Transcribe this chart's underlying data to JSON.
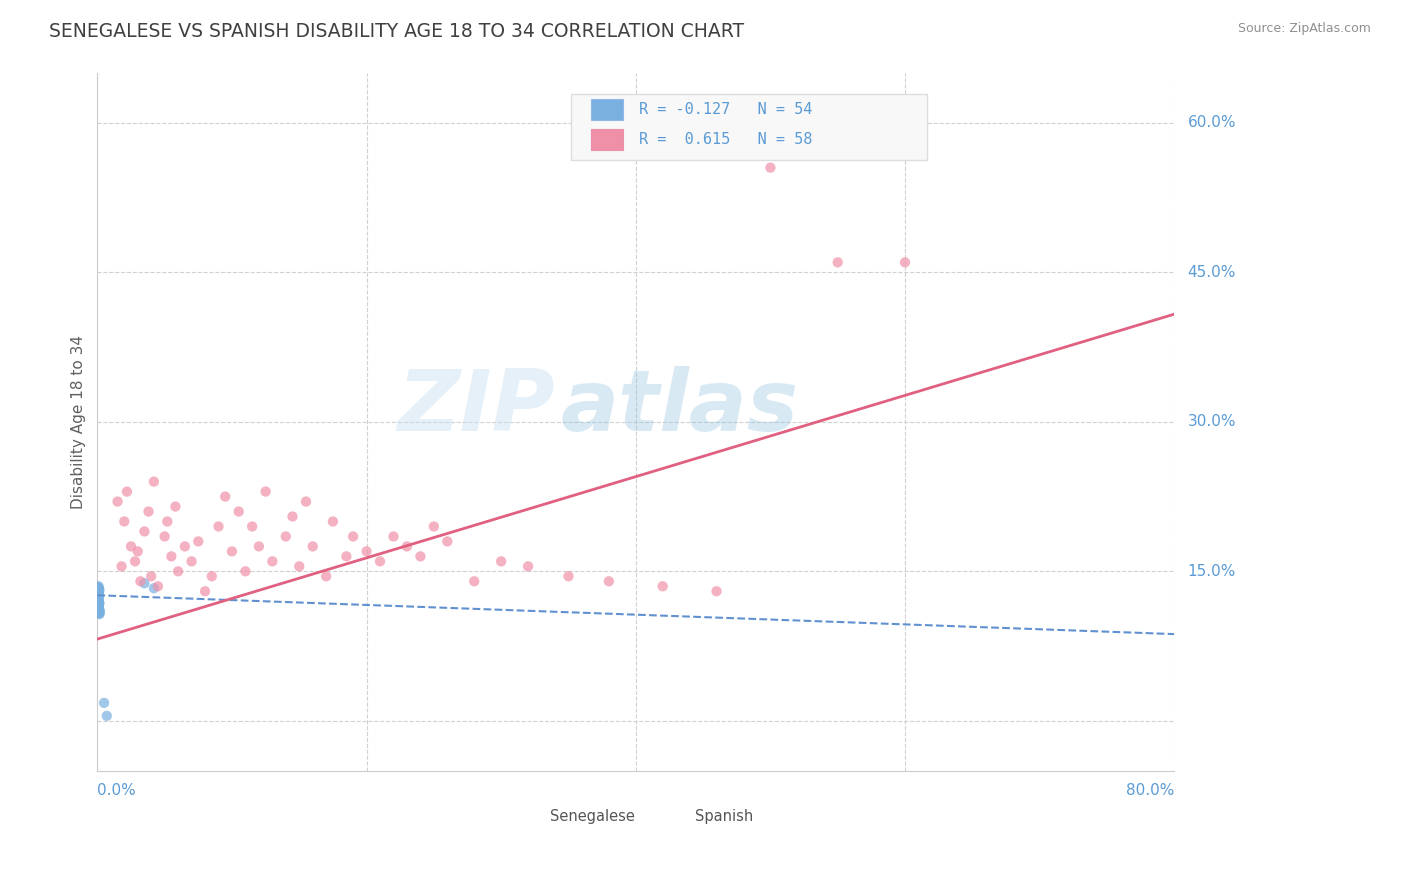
{
  "title": "SENEGALESE VS SPANISH DISABILITY AGE 18 TO 34 CORRELATION CHART",
  "source": "Source: ZipAtlas.com",
  "ylabel": "Disability Age 18 to 34",
  "watermark_zip": "ZIP",
  "watermark_atlas": "atlas",
  "xlim": [
    0.0,
    0.8
  ],
  "ylim": [
    -0.05,
    0.65
  ],
  "bg_color": "#ffffff",
  "grid_color": "#d0d0d0",
  "blue_color": "#7ab0e0",
  "pink_color": "#f090a8",
  "trendline_blue_color": "#6090d0",
  "trendline_pink_color": "#e06080",
  "axis_label_color": "#5b9bd5",
  "title_color": "#404040",
  "source_color": "#909090",
  "legend_bg": "#f8f8f8",
  "legend_border": "#dddddd",
  "scatter_size": 55,
  "senegalese_x": [
    0.0005,
    0.001,
    0.0008,
    0.0012,
    0.0006,
    0.0015,
    0.0009,
    0.0007,
    0.0011,
    0.0013,
    0.0004,
    0.0018,
    0.0006,
    0.001,
    0.0008,
    0.0014,
    0.0007,
    0.0009,
    0.0012,
    0.0005,
    0.0016,
    0.0008,
    0.0011,
    0.0006,
    0.0013,
    0.0009,
    0.0007,
    0.0015,
    0.001,
    0.0004,
    0.0012,
    0.0008,
    0.0006,
    0.0014,
    0.0009,
    0.0011,
    0.0007,
    0.0013,
    0.0005,
    0.0016,
    0.001,
    0.0008,
    0.0012,
    0.0006,
    0.0009,
    0.0011,
    0.0007,
    0.0014,
    0.0008,
    0.001,
    0.035,
    0.042,
    0.005,
    0.007
  ],
  "senegalese_y": [
    0.128,
    0.118,
    0.132,
    0.112,
    0.125,
    0.108,
    0.135,
    0.122,
    0.115,
    0.13,
    0.12,
    0.11,
    0.128,
    0.118,
    0.133,
    0.109,
    0.126,
    0.116,
    0.131,
    0.121,
    0.107,
    0.129,
    0.119,
    0.134,
    0.111,
    0.127,
    0.117,
    0.132,
    0.122,
    0.108,
    0.13,
    0.12,
    0.128,
    0.11,
    0.125,
    0.115,
    0.133,
    0.109,
    0.127,
    0.118,
    0.122,
    0.131,
    0.113,
    0.126,
    0.119,
    0.128,
    0.116,
    0.111,
    0.124,
    0.13,
    0.138,
    0.133,
    0.018,
    0.005
  ],
  "spanish_x": [
    0.018,
    0.025,
    0.032,
    0.02,
    0.028,
    0.015,
    0.04,
    0.035,
    0.022,
    0.03,
    0.045,
    0.038,
    0.055,
    0.05,
    0.042,
    0.06,
    0.052,
    0.065,
    0.058,
    0.07,
    0.075,
    0.08,
    0.09,
    0.085,
    0.095,
    0.1,
    0.11,
    0.105,
    0.12,
    0.115,
    0.13,
    0.125,
    0.14,
    0.15,
    0.145,
    0.16,
    0.155,
    0.17,
    0.175,
    0.185,
    0.19,
    0.2,
    0.21,
    0.22,
    0.23,
    0.24,
    0.25,
    0.26,
    0.28,
    0.3,
    0.32,
    0.35,
    0.38,
    0.42,
    0.46,
    0.5,
    0.55,
    0.6
  ],
  "spanish_y": [
    0.155,
    0.175,
    0.14,
    0.2,
    0.16,
    0.22,
    0.145,
    0.19,
    0.23,
    0.17,
    0.135,
    0.21,
    0.165,
    0.185,
    0.24,
    0.15,
    0.2,
    0.175,
    0.215,
    0.16,
    0.18,
    0.13,
    0.195,
    0.145,
    0.225,
    0.17,
    0.15,
    0.21,
    0.175,
    0.195,
    0.16,
    0.23,
    0.185,
    0.155,
    0.205,
    0.175,
    0.22,
    0.145,
    0.2,
    0.165,
    0.185,
    0.17,
    0.16,
    0.185,
    0.175,
    0.165,
    0.195,
    0.18,
    0.14,
    0.16,
    0.155,
    0.145,
    0.14,
    0.135,
    0.13,
    0.555,
    0.46,
    0.46
  ],
  "trend_blue_x0": 0.0,
  "trend_blue_x1": 0.8,
  "trend_blue_y0": 0.126,
  "trend_blue_y1": 0.087,
  "trend_pink_x0": 0.0,
  "trend_pink_x1": 0.8,
  "trend_pink_y0": 0.082,
  "trend_pink_y1": 0.408
}
